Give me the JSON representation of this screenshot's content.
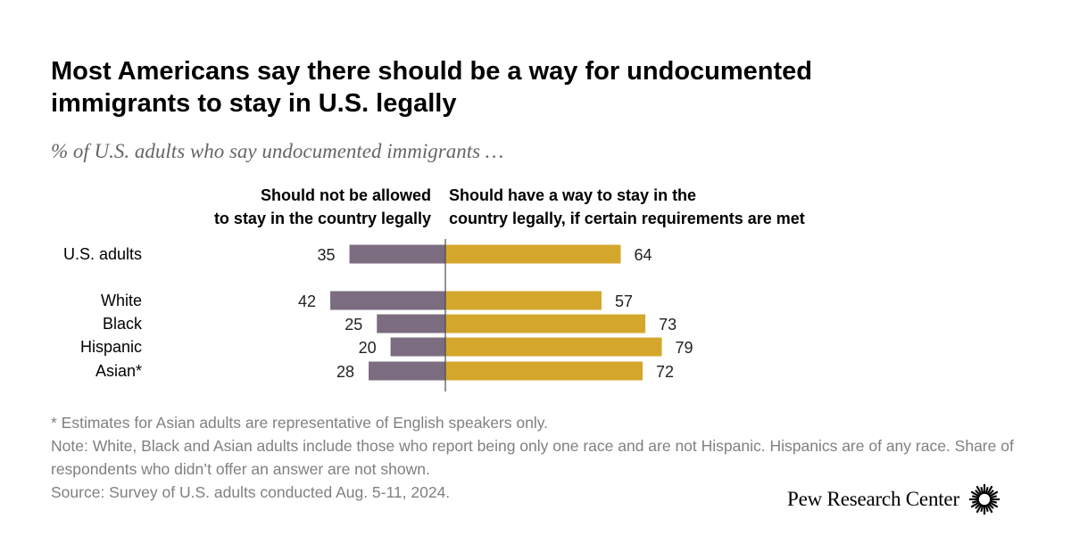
{
  "title": "Most Americans say there should be a way for undocumented immigrants to stay in U.S. legally",
  "subtitle": "% of U.S. adults who say undocumented immigrants …",
  "column_headers": {
    "left": [
      "Should not be allowed",
      "to stay in the country legally"
    ],
    "right": [
      "Should have a way to stay in the",
      "country legally, if certain requirements are met"
    ]
  },
  "colors": {
    "left_bar": "#7b6c80",
    "right_bar": "#d4a72c",
    "axis": "#4a4a4a"
  },
  "chart_data": {
    "type": "bar",
    "orientation": "horizontal-diverging",
    "categories": [
      "U.S. adults",
      "White",
      "Black",
      "Hispanic",
      "Asian*"
    ],
    "series": [
      {
        "name": "Should not be allowed to stay in the country legally",
        "values": [
          35,
          42,
          25,
          20,
          28
        ]
      },
      {
        "name": "Should have a way to stay in the country legally, if certain requirements are met",
        "values": [
          64,
          57,
          73,
          79,
          72
        ]
      }
    ],
    "unit": "%"
  },
  "footnotes": [
    "* Estimates for Asian adults are representative of English speakers only.",
    "Note: White, Black and Asian adults include those who report being only one race and are not Hispanic. Hispanics are of any race. Share of respondents who didn’t offer an answer are not shown.",
    "Source: Survey of U.S. adults conducted Aug. 5-11, 2024."
  ],
  "logo": {
    "text": "Pew Research Center",
    "icon": "pew-sunburst-icon"
  }
}
